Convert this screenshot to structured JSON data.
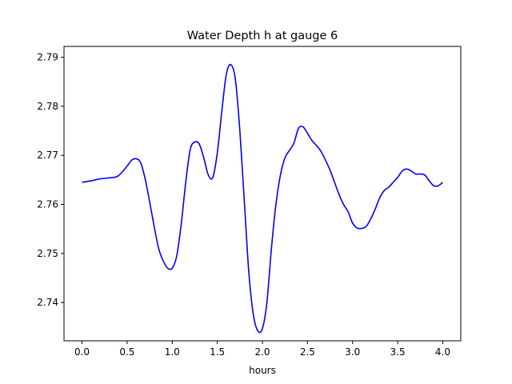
{
  "chart_data": {
    "type": "line",
    "title": "Water Depth h at gauge 6",
    "xlabel": "hours",
    "ylabel": "",
    "xlim": [
      -0.2,
      4.2
    ],
    "ylim": [
      2.7322,
      2.7922
    ],
    "xticks": [
      0.0,
      0.5,
      1.0,
      1.5,
      2.0,
      2.5,
      3.0,
      3.5,
      4.0
    ],
    "xtick_labels": [
      "0.0",
      "0.5",
      "1.0",
      "1.5",
      "2.0",
      "2.5",
      "3.0",
      "3.5",
      "4.0"
    ],
    "yticks": [
      2.74,
      2.75,
      2.76,
      2.77,
      2.78,
      2.79
    ],
    "ytick_labels": [
      "2.74",
      "2.75",
      "2.76",
      "2.77",
      "2.78",
      "2.79"
    ],
    "grid": false,
    "series": [
      {
        "name": "",
        "color": "#0000ff",
        "x": [
          0.0,
          0.1,
          0.2,
          0.3,
          0.4,
          0.5,
          0.55,
          0.6,
          0.65,
          0.7,
          0.75,
          0.8,
          0.85,
          0.9,
          0.95,
          1.0,
          1.05,
          1.1,
          1.15,
          1.2,
          1.25,
          1.3,
          1.35,
          1.4,
          1.45,
          1.5,
          1.55,
          1.6,
          1.65,
          1.7,
          1.75,
          1.8,
          1.85,
          1.9,
          1.95,
          2.0,
          2.05,
          2.1,
          2.15,
          2.2,
          2.25,
          2.3,
          2.35,
          2.4,
          2.45,
          2.5,
          2.55,
          2.6,
          2.65,
          2.7,
          2.75,
          2.8,
          2.85,
          2.9,
          2.95,
          3.0,
          3.05,
          3.1,
          3.15,
          3.2,
          3.25,
          3.3,
          3.35,
          3.4,
          3.45,
          3.5,
          3.55,
          3.6,
          3.65,
          3.7,
          3.75,
          3.8,
          3.85,
          3.9,
          3.95,
          4.0
        ],
        "y": [
          2.7645,
          2.7648,
          2.7652,
          2.7654,
          2.7658,
          2.7678,
          2.769,
          2.7693,
          2.7685,
          2.7652,
          2.7605,
          2.7555,
          2.751,
          2.7485,
          2.747,
          2.747,
          2.7495,
          2.756,
          2.7645,
          2.7712,
          2.7727,
          2.7723,
          2.7695,
          2.766,
          2.7655,
          2.7705,
          2.779,
          2.7865,
          2.7885,
          2.7855,
          2.775,
          2.7605,
          2.746,
          2.7375,
          2.7342,
          2.7347,
          2.74,
          2.751,
          2.76,
          2.766,
          2.7695,
          2.771,
          2.7725,
          2.7755,
          2.7758,
          2.7745,
          2.773,
          2.772,
          2.7708,
          2.769,
          2.767,
          2.7645,
          2.762,
          2.76,
          2.7585,
          2.7562,
          2.7552,
          2.7551,
          2.7555,
          2.757,
          2.759,
          2.7613,
          2.7628,
          2.7635,
          2.7645,
          2.7655,
          2.7668,
          2.7672,
          2.7668,
          2.7662,
          2.7662,
          2.766,
          2.7648,
          2.7638,
          2.7638,
          2.7645
        ]
      }
    ]
  }
}
